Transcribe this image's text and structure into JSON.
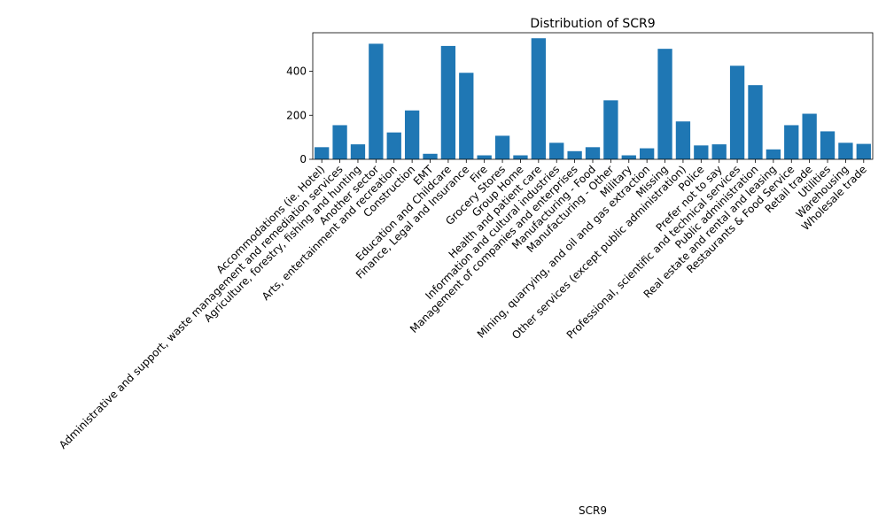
{
  "chart_data": {
    "type": "bar",
    "title": "Distribution of SCR9",
    "xlabel": "SCR9",
    "ylabel": "",
    "ylim": [
      0,
      575
    ],
    "yticks": [
      0,
      200,
      400
    ],
    "grid": false,
    "bar_color": "#1f77b4",
    "categories": [
      "Accommodations (ie. Hotel)",
      "Administrative and support, waste management and remediation services",
      "Agriculture, forestry, fishing and hunting",
      "Another sector",
      "Arts, entertainment and recreation",
      "Construction",
      "EMT",
      "Education and Childcare",
      "Finance, Legal and Insurance",
      "Fire",
      "Grocery Stores",
      "Group Home",
      "Health and patient care",
      "Information and cultural industries",
      "Management of companies and enterprises",
      "Manufacturing - Food",
      "Manufacturing - Other",
      "Military",
      "Mining, quarrying, and oil and gas extraction",
      "Missing",
      "Other services (except public administration)",
      "Police",
      "Prefer not to say",
      "Professional, scientific and technical services",
      "Public administration",
      "Real estate and rental and leasing",
      "Restaurants & Food Service",
      "Retail trade",
      "Utilities",
      "Warehousing",
      "Wholesale trade"
    ],
    "values": [
      55,
      155,
      68,
      525,
      122,
      222,
      25,
      515,
      393,
      18,
      107,
      18,
      550,
      75,
      37,
      55,
      268,
      18,
      50,
      502,
      172,
      63,
      68,
      425,
      337,
      45,
      155,
      207,
      127,
      75,
      70
    ]
  }
}
